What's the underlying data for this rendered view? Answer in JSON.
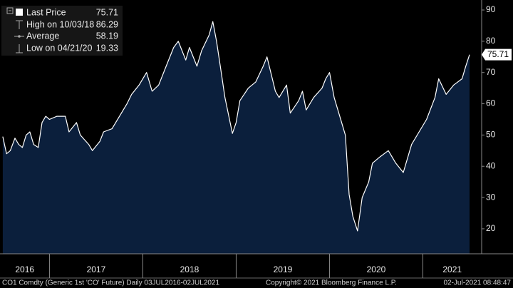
{
  "chart_data": {
    "type": "area",
    "x": [
      2016.5,
      2016.54,
      2016.58,
      2016.63,
      2016.67,
      2016.71,
      2016.75,
      2016.79,
      2016.83,
      2016.88,
      2016.92,
      2016.96,
      2017.0,
      2017.08,
      2017.17,
      2017.21,
      2017.29,
      2017.33,
      2017.42,
      2017.46,
      2017.54,
      2017.58,
      2017.67,
      2017.75,
      2017.83,
      2017.88,
      2017.96,
      2018.04,
      2018.1,
      2018.17,
      2018.25,
      2018.33,
      2018.38,
      2018.46,
      2018.5,
      2018.58,
      2018.63,
      2018.71,
      2018.75,
      2018.79,
      2018.83,
      2018.88,
      2018.96,
      2019.0,
      2019.04,
      2019.13,
      2019.21,
      2019.29,
      2019.33,
      2019.42,
      2019.46,
      2019.54,
      2019.58,
      2019.67,
      2019.71,
      2019.75,
      2019.83,
      2019.92,
      2019.96,
      2020.0,
      2020.05,
      2020.13,
      2020.17,
      2020.21,
      2020.25,
      2020.3,
      2020.35,
      2020.42,
      2020.46,
      2020.54,
      2020.63,
      2020.71,
      2020.79,
      2020.88,
      2020.96,
      2021.04,
      2021.13,
      2021.17,
      2021.25,
      2021.33,
      2021.42,
      2021.46,
      2021.5
    ],
    "series": [
      {
        "name": "Last Price",
        "color": "#ffffff",
        "fill": "#0b1f3c",
        "values": [
          49.5,
          44,
          45,
          49,
          47,
          46,
          50,
          51,
          47,
          46,
          54,
          56,
          55,
          56,
          56,
          51,
          54,
          50,
          47,
          45,
          48,
          51,
          52,
          56,
          60,
          63,
          66,
          70,
          64,
          66,
          72,
          78,
          80,
          74,
          78,
          72,
          77,
          82,
          86.29,
          80,
          72,
          62,
          50.5,
          54,
          61,
          65,
          67,
          72,
          75,
          64,
          62,
          66,
          57,
          61,
          64,
          58,
          62,
          65,
          68,
          70,
          62,
          54,
          50,
          31,
          24,
          19.33,
          30,
          35,
          41,
          43,
          45,
          41,
          38,
          47,
          51,
          55,
          62,
          68,
          63,
          66,
          68,
          72,
          75.71
        ]
      }
    ],
    "stats": [
      {
        "label": "High on 10/03/18",
        "value": 86.29
      },
      {
        "label": "Average",
        "value": 58.19
      },
      {
        "label": "Low on 04/21/20",
        "value": 19.33
      }
    ],
    "xlim": [
      2016.47,
      2021.63
    ],
    "xticks": [
      {
        "value": 2016,
        "label": "2016"
      },
      {
        "value": 2017,
        "label": "2017"
      },
      {
        "value": 2018,
        "label": "2018"
      },
      {
        "value": 2019,
        "label": "2019"
      },
      {
        "value": 2020,
        "label": "2020"
      },
      {
        "value": 2021,
        "label": "2021"
      }
    ],
    "ylim": [
      12,
      93.2
    ],
    "yticks": [
      20,
      30,
      40,
      50,
      60,
      70,
      80,
      90
    ],
    "footer": [
      "CO1 Comdty (Generic 1st 'CO' Future)  Daily 03JUL2016-02JUL2021",
      "Copyright© 2021 Bloomberg Finance L.P.",
      "02-Jul-2021 08:48:47"
    ]
  }
}
